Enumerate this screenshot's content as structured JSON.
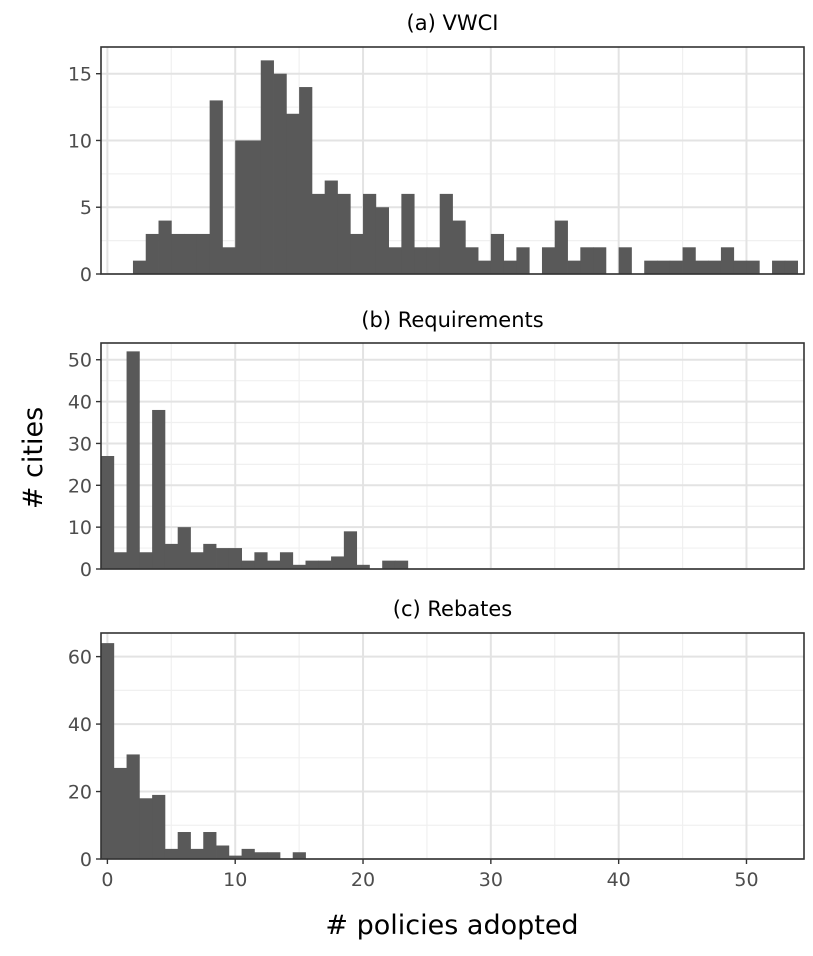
{
  "chart_data": {
    "type": "bar",
    "ylabel": "# cities",
    "xlabel": "# policies adopted",
    "xlim": [
      -0.5,
      54.5
    ],
    "x_ticks": [
      0,
      10,
      20,
      30,
      40,
      50
    ],
    "x_tick_labels": [
      "0",
      "10",
      "20",
      "30",
      "40",
      "50"
    ],
    "grid": true,
    "bar_color": "#595959",
    "panels": [
      {
        "title": "(a) VWCI",
        "ylim": [
          0,
          17
        ],
        "y_ticks": [
          0,
          5,
          10,
          15
        ],
        "y_tick_labels": [
          "0",
          "5",
          "10",
          "15"
        ],
        "bins": [
          {
            "x": 2.5,
            "count": 1
          },
          {
            "x": 3.5,
            "count": 3
          },
          {
            "x": 4.5,
            "count": 4
          },
          {
            "x": 5.5,
            "count": 3
          },
          {
            "x": 6.5,
            "count": 3
          },
          {
            "x": 7.5,
            "count": 3
          },
          {
            "x": 8.5,
            "count": 13
          },
          {
            "x": 9.5,
            "count": 2
          },
          {
            "x": 10.5,
            "count": 10
          },
          {
            "x": 11.5,
            "count": 10
          },
          {
            "x": 12.5,
            "count": 16
          },
          {
            "x": 13.5,
            "count": 15
          },
          {
            "x": 14.5,
            "count": 12
          },
          {
            "x": 15.5,
            "count": 14
          },
          {
            "x": 16.5,
            "count": 6
          },
          {
            "x": 17.5,
            "count": 7
          },
          {
            "x": 18.5,
            "count": 6
          },
          {
            "x": 19.5,
            "count": 3
          },
          {
            "x": 20.5,
            "count": 6
          },
          {
            "x": 21.5,
            "count": 5
          },
          {
            "x": 22.5,
            "count": 2
          },
          {
            "x": 23.5,
            "count": 6
          },
          {
            "x": 24.5,
            "count": 2
          },
          {
            "x": 25.5,
            "count": 2
          },
          {
            "x": 26.5,
            "count": 6
          },
          {
            "x": 27.5,
            "count": 4
          },
          {
            "x": 28.5,
            "count": 2
          },
          {
            "x": 29.5,
            "count": 1
          },
          {
            "x": 30.5,
            "count": 3
          },
          {
            "x": 31.5,
            "count": 1
          },
          {
            "x": 32.5,
            "count": 2
          },
          {
            "x": 34.5,
            "count": 2
          },
          {
            "x": 35.5,
            "count": 4
          },
          {
            "x": 36.5,
            "count": 1
          },
          {
            "x": 37.5,
            "count": 2
          },
          {
            "x": 38.5,
            "count": 2
          },
          {
            "x": 40.5,
            "count": 2
          },
          {
            "x": 42.5,
            "count": 1
          },
          {
            "x": 43.5,
            "count": 1
          },
          {
            "x": 44.5,
            "count": 1
          },
          {
            "x": 45.5,
            "count": 2
          },
          {
            "x": 46.5,
            "count": 1
          },
          {
            "x": 47.5,
            "count": 1
          },
          {
            "x": 48.5,
            "count": 2
          },
          {
            "x": 49.5,
            "count": 1
          },
          {
            "x": 50.5,
            "count": 1
          },
          {
            "x": 52.5,
            "count": 1
          },
          {
            "x": 53.5,
            "count": 1
          }
        ]
      },
      {
        "title": "(b) Requirements",
        "ylim": [
          0,
          54
        ],
        "y_ticks": [
          0,
          10,
          20,
          30,
          40,
          50
        ],
        "y_tick_labels": [
          "0",
          "10",
          "20",
          "30",
          "40",
          "50"
        ],
        "bins": [
          {
            "x": 0,
            "count": 27
          },
          {
            "x": 1,
            "count": 4
          },
          {
            "x": 2,
            "count": 52
          },
          {
            "x": 3,
            "count": 4
          },
          {
            "x": 4,
            "count": 38
          },
          {
            "x": 5,
            "count": 6
          },
          {
            "x": 6,
            "count": 10
          },
          {
            "x": 7,
            "count": 4
          },
          {
            "x": 8,
            "count": 6
          },
          {
            "x": 9,
            "count": 5
          },
          {
            "x": 10,
            "count": 5
          },
          {
            "x": 11,
            "count": 2
          },
          {
            "x": 12,
            "count": 4
          },
          {
            "x": 13,
            "count": 2
          },
          {
            "x": 14,
            "count": 4
          },
          {
            "x": 15,
            "count": 1
          },
          {
            "x": 16,
            "count": 2
          },
          {
            "x": 17,
            "count": 2
          },
          {
            "x": 18,
            "count": 3
          },
          {
            "x": 19,
            "count": 9
          },
          {
            "x": 20,
            "count": 1
          },
          {
            "x": 22,
            "count": 2
          },
          {
            "x": 23,
            "count": 2
          }
        ]
      },
      {
        "title": "(c) Rebates",
        "ylim": [
          0,
          67
        ],
        "y_ticks": [
          0,
          20,
          40,
          60
        ],
        "y_tick_labels": [
          "0",
          "20",
          "40",
          "60"
        ],
        "bins": [
          {
            "x": 0,
            "count": 64
          },
          {
            "x": 1,
            "count": 27
          },
          {
            "x": 2,
            "count": 31
          },
          {
            "x": 3,
            "count": 18
          },
          {
            "x": 4,
            "count": 19
          },
          {
            "x": 5,
            "count": 3
          },
          {
            "x": 6,
            "count": 8
          },
          {
            "x": 7,
            "count": 3
          },
          {
            "x": 8,
            "count": 8
          },
          {
            "x": 9,
            "count": 4
          },
          {
            "x": 10,
            "count": 1
          },
          {
            "x": 11,
            "count": 3
          },
          {
            "x": 12,
            "count": 2
          },
          {
            "x": 13,
            "count": 2
          },
          {
            "x": 15,
            "count": 2
          }
        ]
      }
    ]
  }
}
